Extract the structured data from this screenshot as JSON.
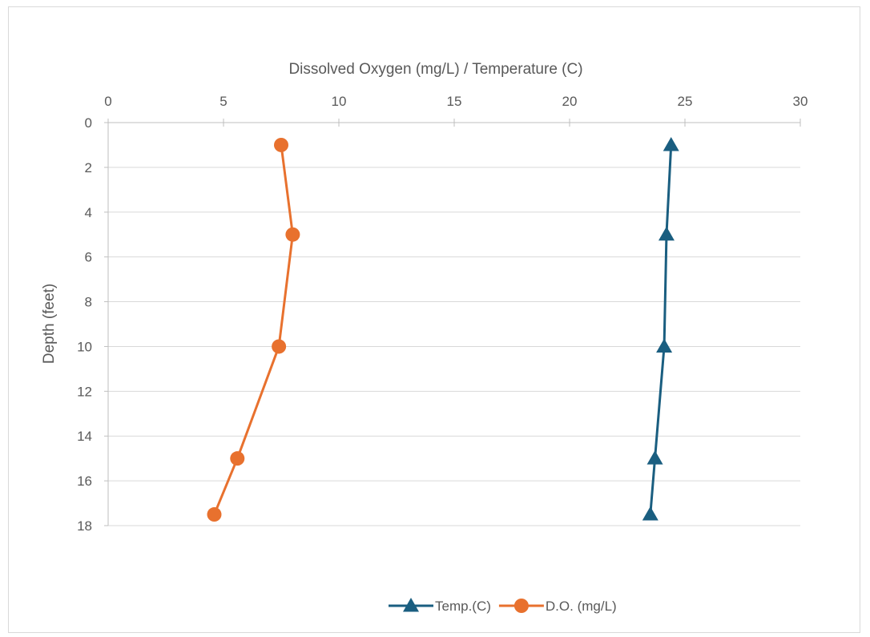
{
  "chart_data": {
    "type": "line",
    "orientation": "depth-profile (x on top, y reversed)",
    "xlabel": "Dissolved Oxygen (mg/L) / Temperature (C)",
    "ylabel": "Depth (feet)",
    "xlim": [
      0,
      30
    ],
    "ylim": [
      0,
      18
    ],
    "y_reversed": true,
    "x_ticks": [
      "0",
      "5",
      "10",
      "15",
      "20",
      "25",
      "30"
    ],
    "y_ticks": [
      "0",
      "2",
      "4",
      "6",
      "8",
      "10",
      "12",
      "14",
      "16",
      "18"
    ],
    "grid": "horizontal",
    "legend_position": "bottom",
    "series": [
      {
        "name": "Temp.(C)",
        "color": "#1a5e80",
        "marker": "triangle",
        "points": [
          {
            "x": 24.4,
            "y": 1
          },
          {
            "x": 24.2,
            "y": 5
          },
          {
            "x": 24.1,
            "y": 10
          },
          {
            "x": 23.7,
            "y": 15
          },
          {
            "x": 23.5,
            "y": 17.5
          }
        ]
      },
      {
        "name": "D.O. (mg/L)",
        "color": "#e8712e",
        "marker": "circle",
        "points": [
          {
            "x": 7.5,
            "y": 1
          },
          {
            "x": 8.0,
            "y": 5
          },
          {
            "x": 7.4,
            "y": 10
          },
          {
            "x": 5.6,
            "y": 15
          },
          {
            "x": 4.6,
            "y": 17.5
          }
        ]
      }
    ]
  }
}
